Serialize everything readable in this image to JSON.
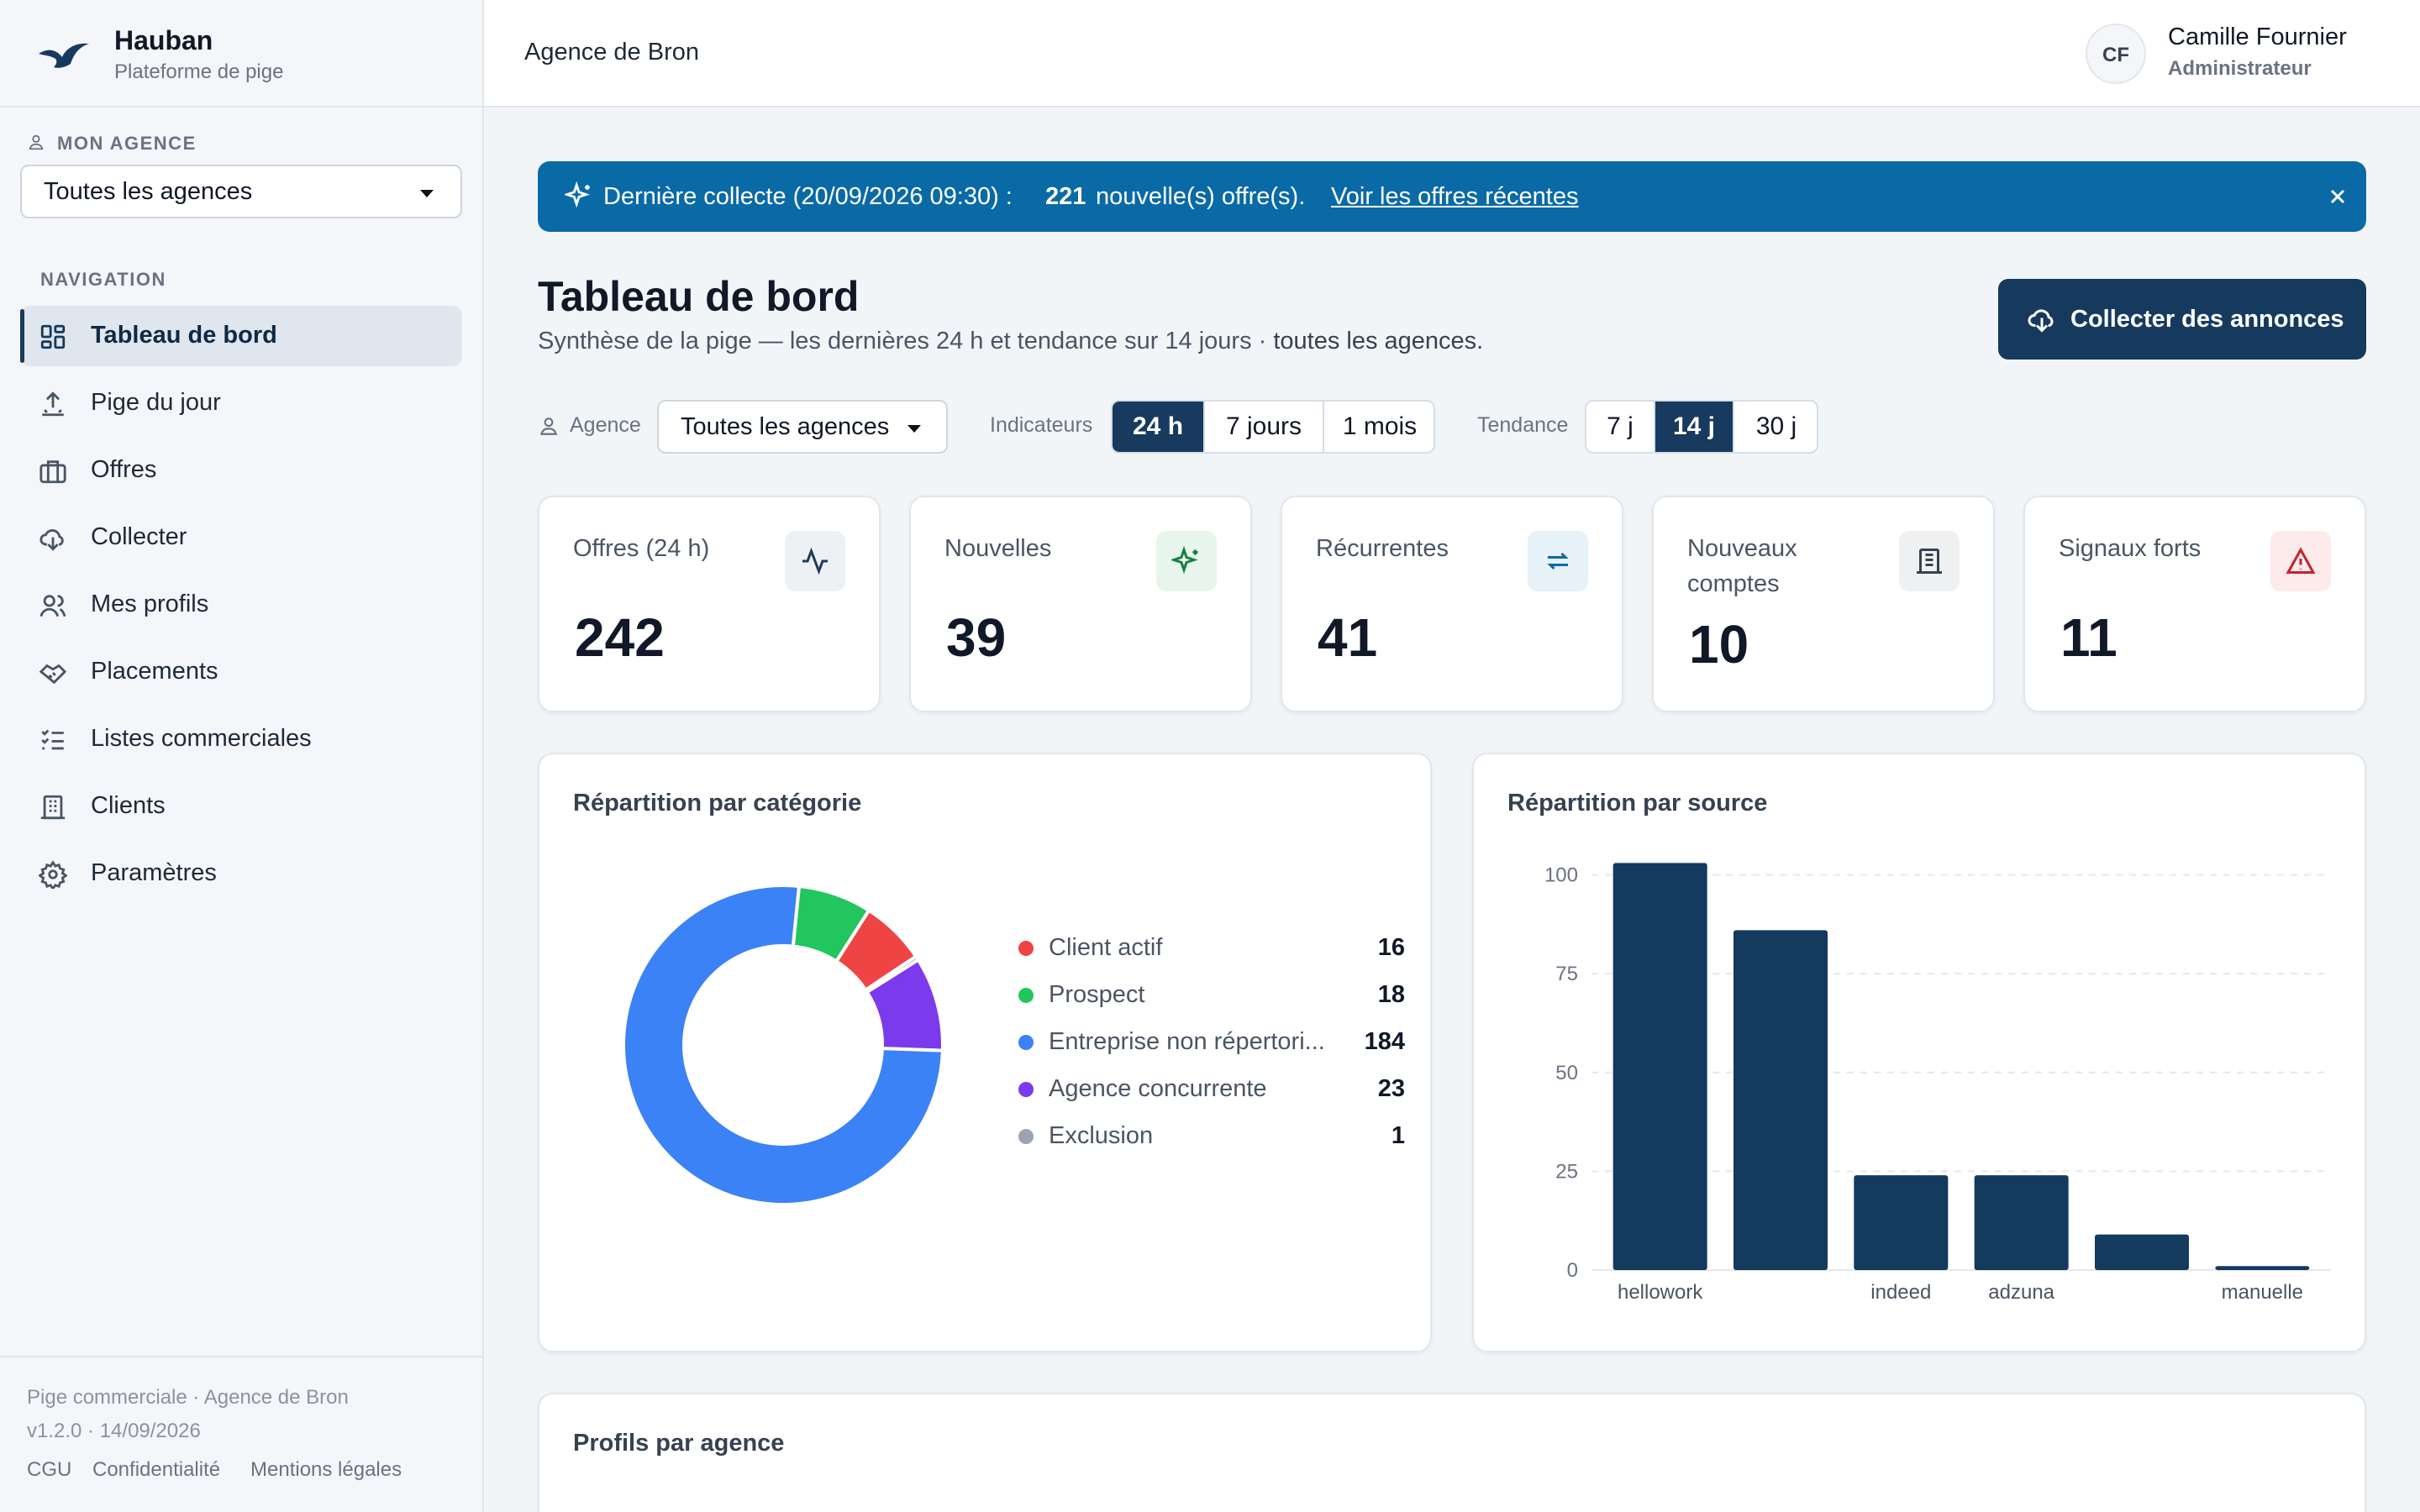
{
  "app": {
    "name": "Hauban",
    "subtitle": "Plateforme de pige"
  },
  "sidebar": {
    "agency_section_label": "MON AGENCE",
    "agency_select_value": "Toutes les agences",
    "nav_section_label": "NAVIGATION",
    "items": [
      {
        "label": "Tableau de bord",
        "icon": "dashboard-icon",
        "active": true
      },
      {
        "label": "Pige du jour",
        "icon": "upload-icon"
      },
      {
        "label": "Offres",
        "icon": "briefcase-icon"
      },
      {
        "label": "Collecter",
        "icon": "cloud-download-icon"
      },
      {
        "label": "Mes profils",
        "icon": "users-icon"
      },
      {
        "label": "Placements",
        "icon": "handshake-icon"
      },
      {
        "label": "Listes commerciales",
        "icon": "checklist-icon"
      },
      {
        "label": "Clients",
        "icon": "building-icon"
      },
      {
        "label": "Paramètres",
        "icon": "gear-icon"
      }
    ],
    "footer": {
      "line1": "Pige commerciale · Agence de Bron",
      "line2": "v1.2.0 · 14/09/2026",
      "links": [
        "CGU",
        "Confidentialité",
        "Mentions légales"
      ]
    }
  },
  "header": {
    "title": "Agence de Bron",
    "user": {
      "initials": "CF",
      "name": "Camille Fournier",
      "role": "Administrateur"
    }
  },
  "banner": {
    "prefix": "Dernière collecte (20/09/2026 09:30) :",
    "count": "221",
    "suffix": "nouvelle(s) offre(s).",
    "link": "Voir les offres récentes",
    "color": "#0a6aa6"
  },
  "page": {
    "title": "Tableau de bord",
    "subtitle_main": "Synthèse de la pige — les dernières 24 h et tendance sur 14 jours · ",
    "subtitle_bold": "toutes les agences.",
    "collect_button": "Collecter des annonces"
  },
  "filters": {
    "agency_label": "Agence",
    "agency_value": "Toutes les agences",
    "indicators_label": "Indicateurs",
    "indicators_options": [
      "24 h",
      "7 jours",
      "1 mois"
    ],
    "indicators_selected": "24 h",
    "trend_label": "Tendance",
    "trend_options": [
      "7 j",
      "14 j",
      "30 j"
    ],
    "trend_selected": "14 j"
  },
  "kpis": [
    {
      "label": "Offres (24 h)",
      "value": "242",
      "icon": "activity-icon",
      "icon_bg": "#eef1f4",
      "icon_color": "#1f3a5a"
    },
    {
      "label": "Nouvelles",
      "value": "39",
      "icon": "sparkles-icon",
      "icon_bg": "#e7f5ec",
      "icon_color": "#16803c"
    },
    {
      "label": "Récurrentes",
      "value": "41",
      "icon": "repeat-icon",
      "icon_bg": "#e6f1f8",
      "icon_color": "#0a6aa6"
    },
    {
      "label": "Nouveaux comptes",
      "value": "10",
      "icon": "building-icon",
      "icon_bg": "#eef0f2",
      "icon_color": "#374151"
    },
    {
      "label": "Signaux forts",
      "value": "11",
      "icon": "alert-triangle-icon",
      "icon_bg": "#fdeaea",
      "icon_color": "#c0262d"
    }
  ],
  "category_card": {
    "title": "Répartition par catégorie"
  },
  "source_card": {
    "title": "Répartition par source"
  },
  "profiles_card": {
    "title": "Profils par agence"
  },
  "chart_data": [
    {
      "type": "pie",
      "title": "Répartition par catégorie",
      "categories": [
        "Client actif",
        "Prospect",
        "Entreprise non répertori...",
        "Agence concurrente",
        "Exclusion"
      ],
      "values": [
        16,
        18,
        184,
        23,
        1
      ],
      "colors": [
        "#ef4444",
        "#22c55e",
        "#3b82f6",
        "#7c3aed",
        "#9ca3af"
      ],
      "donut": true
    },
    {
      "type": "bar",
      "title": "Répartition par source",
      "categories": [
        "hellowork",
        "",
        "indeed",
        "adzuna",
        "",
        "manuelle"
      ],
      "values": [
        103,
        86,
        24,
        24,
        9,
        1
      ],
      "yticks": [
        0,
        25,
        50,
        75,
        100
      ],
      "ylim": [
        0,
        105
      ],
      "grid": true,
      "color": "#143a5e"
    }
  ]
}
